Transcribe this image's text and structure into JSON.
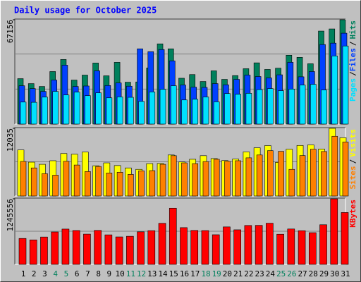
{
  "chart_data": [
    {
      "type": "bar",
      "title": "Daily usage for October 2025",
      "legend_separator": "/",
      "ylim": [
        0,
        67156
      ],
      "yticks": [
        67156
      ],
      "series": [
        {
          "name": "Hits",
          "color": "#00805c",
          "values": [
            29248,
            26049,
            24221,
            33818,
            41587,
            28334,
            31533,
            39302,
            31076,
            39759,
            26963,
            27120,
            36103,
            51641,
            48442,
            29510,
            31880,
            27420,
            34275,
            28791,
            31210,
            35646,
            39420,
            35189,
            35980,
            44329,
            42958,
            38845,
            59867,
            61238,
            67156
          ]
        },
        {
          "name": "Files",
          "color": "#0040ff",
          "values": [
            24678,
            22850,
            21022,
            28334,
            37931,
            24221,
            24510,
            34275,
            24830,
            26506,
            24390,
            48442,
            46614,
            47985,
            40673,
            25135,
            23764,
            23610,
            26049,
            25290,
            28791,
            31533,
            30619,
            29705,
            31720,
            39759,
            30440,
            33818,
            51184,
            52098,
            58496
          ]
        },
        {
          "name": "Pages",
          "color": "#00e0ff",
          "values": [
            14167,
            14020,
            17366,
            21022,
            18737,
            20565,
            18280,
            20108,
            16909,
            17510,
            17230,
            14624,
            20710,
            22393,
            24678,
            15538,
            15995,
            17440,
            14310,
            19651,
            19194,
            19800,
            22210,
            22850,
            21479,
            22540,
            25135,
            25592,
            21936,
            43872,
            50270
          ]
        }
      ]
    },
    {
      "type": "bar",
      "legend_separator": "/",
      "ylim": [
        0,
        12035
      ],
      "yticks": [
        12035
      ],
      "series": [
        {
          "name": "Visits",
          "color": "#ffff00",
          "values": [
            8192,
            6016,
            5632,
            6272,
            7552,
            7424,
            7808,
            5376,
            5888,
            5410,
            4992,
            4736,
            5760,
            5790,
            7296,
            6050,
            6528,
            7168,
            6656,
            6300,
            6560,
            7840,
            8576,
            8960,
            5980,
            8320,
            8990,
            9088,
            8350,
            12035,
            10368
          ]
        },
        {
          "name": "Sites",
          "color": "#ff8000",
          "values": [
            6144,
            4992,
            3968,
            3712,
            6170,
            5504,
            4352,
            5248,
            4096,
            4224,
            3840,
            4480,
            4510,
            5632,
            7168,
            5888,
            5760,
            6120,
            6528,
            6160,
            6272,
            6784,
            7296,
            8064,
            7936,
            4736,
            7190,
            8320,
            7910,
            10624,
            9600
          ]
        }
      ]
    },
    {
      "type": "bar",
      "ylim": [
        0,
        1245556
      ],
      "yticks": [
        1245556
      ],
      "categories": [
        "1",
        "2",
        "3",
        "4",
        "5",
        "6",
        "7",
        "8",
        "9",
        "10",
        "11",
        "12",
        "13",
        "14",
        "15",
        "16",
        "17",
        "18",
        "19",
        "20",
        "21",
        "22",
        "23",
        "24",
        "25",
        "26",
        "27",
        "28",
        "29",
        "30",
        "31"
      ],
      "category_colors": [
        "#000000",
        "#000000",
        "#000000",
        "#00805c",
        "#00805c",
        "#000000",
        "#000000",
        "#000000",
        "#000000",
        "#000000",
        "#00805c",
        "#00805c",
        "#000000",
        "#000000",
        "#000000",
        "#000000",
        "#000000",
        "#00805c",
        "#00805c",
        "#000000",
        "#000000",
        "#000000",
        "#000000",
        "#000000",
        "#00805c",
        "#00805c",
        "#000000",
        "#000000",
        "#000000",
        "#000000",
        "#000000"
      ],
      "series": [
        {
          "name": "KBytes",
          "color": "#ff0000",
          "values": [
            492768,
            465392,
            520144,
            615960,
            670712,
            643336,
            574896,
            645210,
            561208,
            521870,
            533832,
            618330,
            641120,
            780216,
            1067664,
            698088,
            644750,
            642410,
            563020,
            711776,
            657024,
            739152,
            741080,
            782150,
            572930,
            672340,
            639870,
            602272,
            752840,
            1245556,
            985536
          ]
        }
      ]
    }
  ]
}
